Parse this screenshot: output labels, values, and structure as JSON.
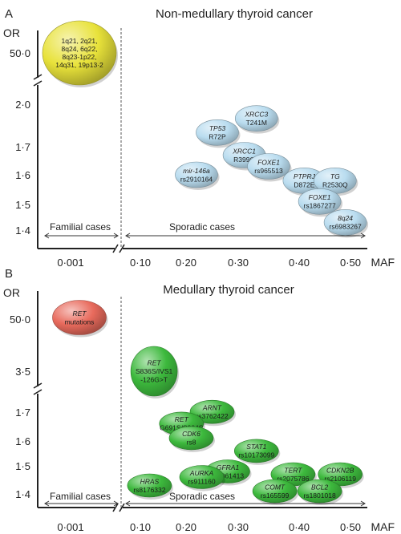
{
  "chart_data": [
    {
      "panel": "A",
      "type": "scatter",
      "title": "Non-medullary thyroid cancer",
      "ylabel": "OR",
      "xlabel": "MAF",
      "x_ticks": [
        "0·001",
        "0·10",
        "0·20",
        "0·30",
        "0·40",
        "0·50"
      ],
      "y_ticks": [
        "1·4",
        "1·5",
        "1·6",
        "1·7",
        "2·0",
        "50·0"
      ],
      "region_labels": [
        "Familial cases",
        "Sporadic cases"
      ],
      "color": "#b9dcef",
      "points": [
        {
          "lines": [
            "1q21, 2q21,",
            "8q24, 6q22,",
            "8q23-1p22,",
            "14q31, 19p13·2"
          ],
          "x": 0.001,
          "y": 50.0,
          "color": "#e8e23a",
          "group": "familial"
        },
        {
          "lines": [
            "TP53",
            "R72P"
          ],
          "x": 0.26,
          "y": 1.8
        },
        {
          "lines": [
            "XRCC3",
            "T241M"
          ],
          "x": 0.33,
          "y": 1.9
        },
        {
          "lines": [
            "XRCC1",
            "R399Q"
          ],
          "x": 0.31,
          "y": 1.67
        },
        {
          "lines": [
            "FOXE1",
            "rs965513"
          ],
          "x": 0.35,
          "y": 1.63
        },
        {
          "lines": [
            "mir-146a",
            "rs2910164"
          ],
          "x": 0.22,
          "y": 1.6
        },
        {
          "lines": [
            "PTPRJ",
            "D872E"
          ],
          "x": 0.41,
          "y": 1.58
        },
        {
          "lines": [
            "TG",
            "R2530Q"
          ],
          "x": 0.47,
          "y": 1.58
        },
        {
          "lines": [
            "FOXE1",
            "rs1867277"
          ],
          "x": 0.44,
          "y": 1.51
        },
        {
          "lines": [
            "8q24",
            "rs6983267"
          ],
          "x": 0.49,
          "y": 1.43
        }
      ]
    },
    {
      "panel": "B",
      "type": "scatter",
      "title": "Medullary thyroid cancer",
      "ylabel": "OR",
      "xlabel": "MAF",
      "x_ticks": [
        "0·001",
        "0·10",
        "0·20",
        "0·30",
        "0·40",
        "0·50"
      ],
      "y_ticks": [
        "1·4",
        "1·5",
        "1·6",
        "1·7",
        "3·5",
        "50·0"
      ],
      "region_labels": [
        "Familial cases",
        "Sporadic cases"
      ],
      "color": "#3db93d",
      "points": [
        {
          "lines": [
            "RET",
            "mutations"
          ],
          "x": 0.001,
          "y": 50.0,
          "color": "#e86a5c",
          "group": "familial"
        },
        {
          "lines": [
            "RET",
            "S836S/IVS1",
            "-126G>T"
          ],
          "x": 0.13,
          "y": 3.5
        },
        {
          "lines": [
            "ARNT",
            "rs3762422"
          ],
          "x": 0.25,
          "y": 1.71
        },
        {
          "lines": [
            "RET",
            "G691S/S904S"
          ],
          "x": 0.19,
          "y": 1.66
        },
        {
          "lines": [
            "CDK6",
            "rs8"
          ],
          "x": 0.21,
          "y": 1.61
        },
        {
          "lines": [
            "STAT1",
            "rs10173099"
          ],
          "x": 0.33,
          "y": 1.56
        },
        {
          "lines": [
            "GFRA1",
            "rs1061413"
          ],
          "x": 0.28,
          "y": 1.48
        },
        {
          "lines": [
            "AURKA",
            "rs911160"
          ],
          "x": 0.23,
          "y": 1.46
        },
        {
          "lines": [
            "TERT",
            "rs2075786"
          ],
          "x": 0.39,
          "y": 1.47
        },
        {
          "lines": [
            "CDKN2B",
            "rs2106119"
          ],
          "x": 0.48,
          "y": 1.47
        },
        {
          "lines": [
            "HRAS",
            "rs8176332"
          ],
          "x": 0.12,
          "y": 1.43
        },
        {
          "lines": [
            "COMT",
            "rs165599"
          ],
          "x": 0.36,
          "y": 1.41
        },
        {
          "lines": [
            "BCL2",
            "rs1801018"
          ],
          "x": 0.44,
          "y": 1.41
        }
      ]
    }
  ]
}
